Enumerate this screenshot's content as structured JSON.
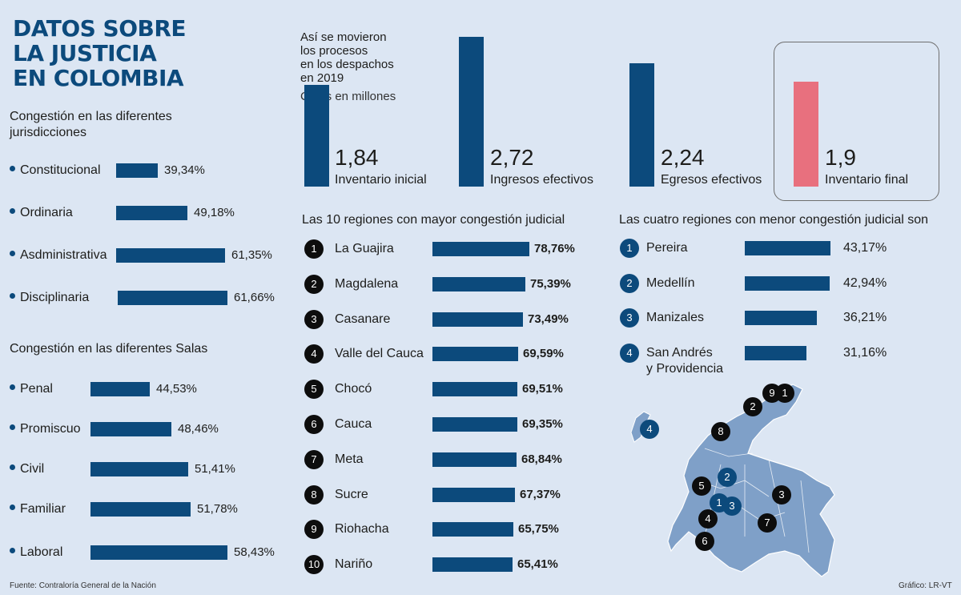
{
  "title_lines": [
    "DATOS SOBRE",
    "LA JUSTICIA",
    "EN COLOMBIA"
  ],
  "footer": {
    "source": "Fuente: Contraloría General de la Nación",
    "credit": "Gráfico: LR-VT"
  },
  "colors": {
    "primary": "#0c4a7c",
    "highlight": "#e8707e",
    "background": "#dce6f3",
    "badge_dark": "#0d0d0d"
  },
  "chart_data": [
    {
      "type": "bar",
      "title": "Congestión en las diferentes jurisdicciones",
      "categories": [
        "Constitucional",
        "Ordinaria",
        "Asdministrativa",
        "Disciplinaria"
      ],
      "values": [
        39.34,
        49.18,
        61.35,
        61.66
      ],
      "value_labels": [
        "39,34%",
        "49,18%",
        "61,35%",
        "61,66%"
      ],
      "unit": "%"
    },
    {
      "type": "bar",
      "title": "Congestión en las diferentes Salas",
      "categories": [
        "Penal",
        "Promiscuo",
        "Civil",
        "Familiar",
        "Laboral"
      ],
      "values": [
        44.53,
        48.46,
        51.41,
        51.78,
        58.43
      ],
      "value_labels": [
        "44,53%",
        "48,46%",
        "51,41%",
        "51,78%",
        "58,43%"
      ],
      "unit": "%"
    },
    {
      "type": "bar",
      "title_lines": [
        "Así se movieron",
        "los procesos",
        "en los despachos",
        "en 2019"
      ],
      "subtitle": "Cifras en millones",
      "categories": [
        "Inventario inicial",
        "Ingresos efectivos",
        "Egresos efectivos",
        "Inventario final"
      ],
      "values": [
        1.84,
        2.72,
        2.24,
        1.9
      ],
      "value_labels": [
        "1,84",
        "2,72",
        "2,24",
        "1,9"
      ],
      "highlight": "Inventario final"
    },
    {
      "type": "bar",
      "title": "Las 10 regiones con mayor congestión judicial",
      "ranks": [
        "1",
        "2",
        "3",
        "4",
        "5",
        "6",
        "7",
        "8",
        "9",
        "10"
      ],
      "categories": [
        "La Guajira",
        "Magdalena",
        "Casanare",
        "Valle del Cauca",
        "Chocó",
        "Cauca",
        "Meta",
        "Sucre",
        "Riohacha",
        "Nariño"
      ],
      "values": [
        78.76,
        75.39,
        73.49,
        69.59,
        69.51,
        69.35,
        68.84,
        67.37,
        65.75,
        65.41
      ],
      "value_labels": [
        "78,76%",
        "75,39%",
        "73,49%",
        "69,59%",
        "69,51%",
        "69,35%",
        "68,84%",
        "67,37%",
        "65,75%",
        "65,41%"
      ],
      "unit": "%"
    },
    {
      "type": "bar",
      "title": "Las cuatro regiones con menor congestión judicial son",
      "ranks": [
        "1",
        "2",
        "3",
        "4"
      ],
      "categories": [
        "Pereira",
        "Medellín",
        "Manizales",
        "San Andrés y Providencia"
      ],
      "category_lines": [
        [
          "Pereira"
        ],
        [
          "Medellín"
        ],
        [
          "Manizales"
        ],
        [
          "San Andrés",
          "y Providencia"
        ]
      ],
      "values": [
        43.17,
        42.94,
        36.21,
        31.16
      ],
      "value_labels": [
        "43,17%",
        "42,94%",
        "36,21%",
        "31,16%"
      ],
      "unit": "%"
    }
  ],
  "map": {
    "markers_high": [
      "9",
      "1",
      "2",
      "8",
      "5",
      "3",
      "7",
      "4",
      "6"
    ],
    "markers_low": [
      "4",
      "2",
      "1",
      "3"
    ]
  }
}
